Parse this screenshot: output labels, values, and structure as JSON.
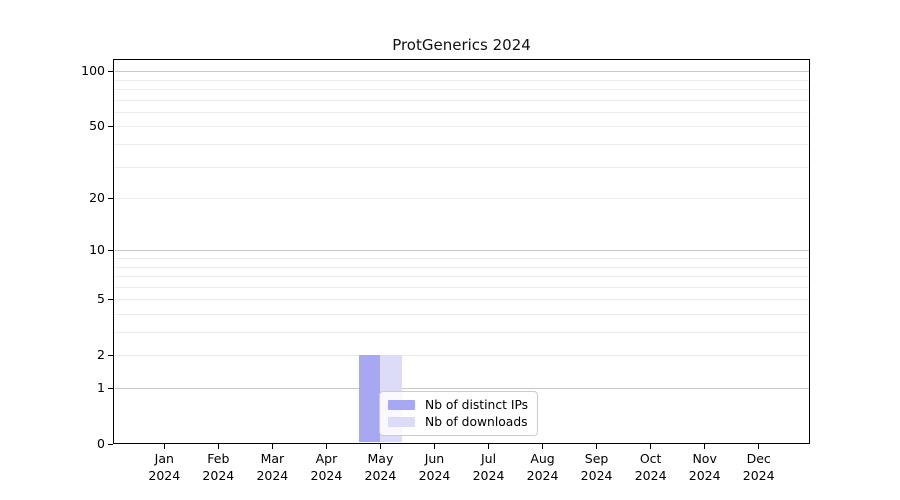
{
  "title": "ProtGenerics 2024",
  "chart_data": {
    "type": "bar",
    "title": "ProtGenerics 2024",
    "yscale": "log1p",
    "ylim": [
      0,
      116
    ],
    "grid": "horizontal",
    "y_ticks": [
      0,
      1,
      2,
      5,
      10,
      20,
      50,
      100
    ],
    "y_major_gridlines": [
      1,
      10,
      100
    ],
    "y_minor_gridlines": [
      2,
      3,
      4,
      5,
      6,
      7,
      8,
      9,
      20,
      30,
      40,
      50,
      60,
      70,
      80,
      90
    ],
    "x_ticks": [
      {
        "month": "Jan",
        "year": "2024"
      },
      {
        "month": "Feb",
        "year": "2024"
      },
      {
        "month": "Mar",
        "year": "2024"
      },
      {
        "month": "Apr",
        "year": "2024"
      },
      {
        "month": "May",
        "year": "2024"
      },
      {
        "month": "Jun",
        "year": "2024"
      },
      {
        "month": "Jul",
        "year": "2024"
      },
      {
        "month": "Aug",
        "year": "2024"
      },
      {
        "month": "Sep",
        "year": "2024"
      },
      {
        "month": "Oct",
        "year": "2024"
      },
      {
        "month": "Nov",
        "year": "2024"
      },
      {
        "month": "Dec",
        "year": "2024"
      }
    ],
    "series": [
      {
        "name": "Nb of distinct IPs",
        "color": "#a7a7f2",
        "values": [
          0,
          0,
          0,
          0,
          2,
          0,
          0,
          0,
          0,
          0,
          0,
          0
        ]
      },
      {
        "name": "Nb of downloads",
        "color": "#dcdcf8",
        "values": [
          0,
          0,
          0,
          0,
          2,
          0,
          0,
          0,
          0,
          0,
          0,
          0
        ]
      }
    ],
    "legend_position": "lower center",
    "colors": {
      "grid_major": "#c8c8c8",
      "grid_minor": "#ececec",
      "spine": "#000000",
      "background": "#ffffff",
      "legend_border": "#cccccc"
    }
  }
}
